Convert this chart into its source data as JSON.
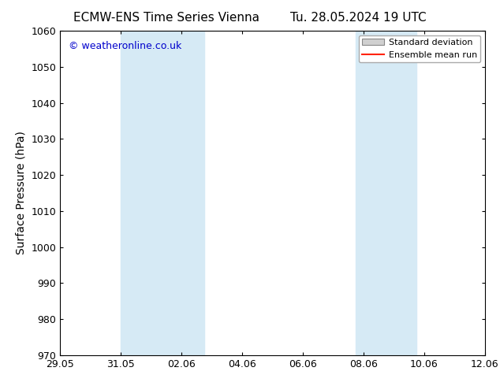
{
  "title_left": "ECMW-ENS Time Series Vienna",
  "title_right": "Tu. 28.05.2024 19 UTC",
  "ylabel": "Surface Pressure (hPa)",
  "ylim": [
    970,
    1060
  ],
  "yticks": [
    970,
    980,
    990,
    1000,
    1010,
    1020,
    1030,
    1040,
    1050,
    1060
  ],
  "xlim": [
    0,
    14
  ],
  "xtick_labels": [
    "29.05",
    "31.05",
    "02.06",
    "04.06",
    "06.06",
    "08.06",
    "10.06",
    "12.06"
  ],
  "xtick_positions_days": [
    0,
    2,
    4,
    6,
    8,
    10,
    12,
    14
  ],
  "shaded_regions": [
    {
      "x_start_days": 2.0,
      "x_end_days": 4.75
    },
    {
      "x_start_days": 9.75,
      "x_end_days": 11.75
    }
  ],
  "shaded_color": "#d6eaf5",
  "watermark_text": "© weatheronline.co.uk",
  "watermark_color": "#0000cc",
  "legend_std_label": "Standard deviation",
  "legend_mean_label": "Ensemble mean run",
  "legend_std_facecolor": "#d0d0d0",
  "legend_std_edgecolor": "#888888",
  "legend_mean_color": "#ff2200",
  "bg_color": "#ffffff",
  "title_color": "#000000",
  "title_fontsize": 11,
  "axis_label_fontsize": 10,
  "tick_fontsize": 9,
  "watermark_fontsize": 9,
  "legend_fontsize": 8
}
